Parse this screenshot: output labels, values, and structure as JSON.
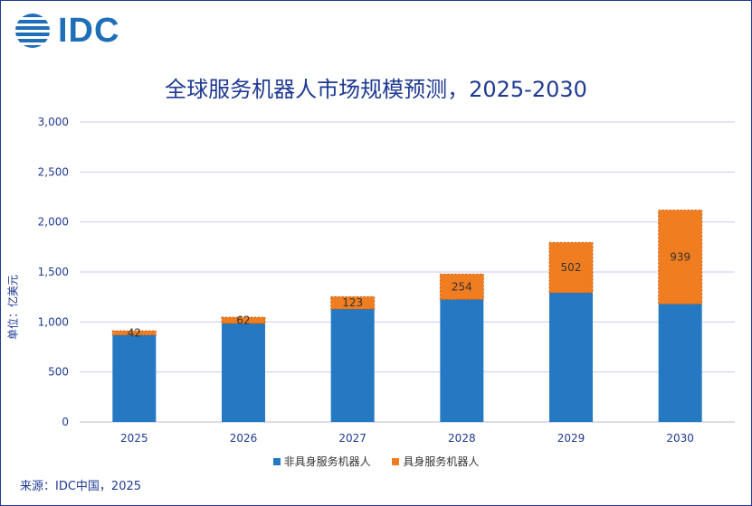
{
  "logo": {
    "text": "IDC"
  },
  "chart_data": {
    "type": "bar",
    "stacked": true,
    "title": "全球服务机器人市场规模预测，2025-2030",
    "ylabel": "单位：亿美元",
    "xlabel": "",
    "categories": [
      "2025",
      "2026",
      "2027",
      "2028",
      "2029",
      "2030"
    ],
    "series": [
      {
        "name": "非具身服务机器人",
        "color": "#2479c2",
        "values": [
          870,
          985,
          1130,
          1225,
          1293,
          1180
        ],
        "show_labels": false
      },
      {
        "name": "具身服务机器人",
        "color": "#f07d1f",
        "values": [
          42,
          62,
          123,
          254,
          502,
          939
        ],
        "show_labels": true
      }
    ],
    "ylim": [
      0,
      3000
    ],
    "yticks": [
      "0",
      "500",
      "1,000",
      "1,500",
      "2,000",
      "2,500",
      "3,000"
    ],
    "ytick_values": [
      0,
      500,
      1000,
      1500,
      2000,
      2500,
      3000
    ],
    "grid": true,
    "legend_position": "bottom"
  },
  "source": "来源：IDC中国，2025"
}
